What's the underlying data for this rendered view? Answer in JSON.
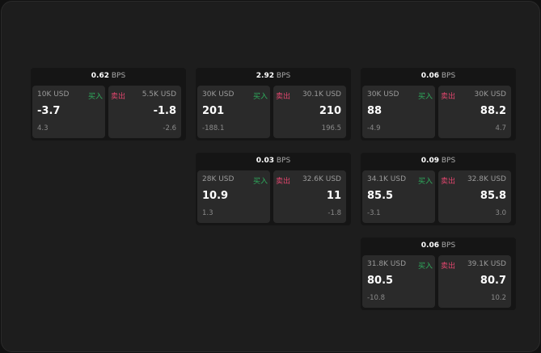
{
  "unit": "BPS",
  "buy_label": "买入",
  "sell_label": "卖出",
  "colors": {
    "buy": "#2fae5e",
    "sell": "#e0466e",
    "background": "#1d1d1d",
    "card": "#2a2a2a"
  },
  "cards": [
    {
      "spread": "0.62",
      "buy": {
        "size": "10K USD",
        "price": "-3.7",
        "change": "4.3"
      },
      "sell": {
        "size": "5.5K USD",
        "price": "-1.8",
        "change": "-2.6"
      }
    },
    {
      "spread": "2.92",
      "buy": {
        "size": "30K USD",
        "price": "201",
        "change": "-188.1"
      },
      "sell": {
        "size": "30.1K USD",
        "price": "210",
        "change": "196.5"
      }
    },
    {
      "spread": "0.06",
      "buy": {
        "size": "30K USD",
        "price": "88",
        "change": "-4.9"
      },
      "sell": {
        "size": "30K USD",
        "price": "88.2",
        "change": "4.7"
      }
    },
    {
      "spread": "0.03",
      "buy": {
        "size": "28K USD",
        "price": "10.9",
        "change": "1.3"
      },
      "sell": {
        "size": "32.6K USD",
        "price": "11",
        "change": "-1.8"
      }
    },
    {
      "spread": "0.09",
      "buy": {
        "size": "34.1K USD",
        "price": "85.5",
        "change": "-3.1"
      },
      "sell": {
        "size": "32.8K USD",
        "price": "85.8",
        "change": "3.0"
      }
    },
    {
      "spread": "0.06",
      "buy": {
        "size": "31.8K USD",
        "price": "80.5",
        "change": "-10.8"
      },
      "sell": {
        "size": "39.1K USD",
        "price": "80.7",
        "change": "10.2"
      }
    }
  ]
}
